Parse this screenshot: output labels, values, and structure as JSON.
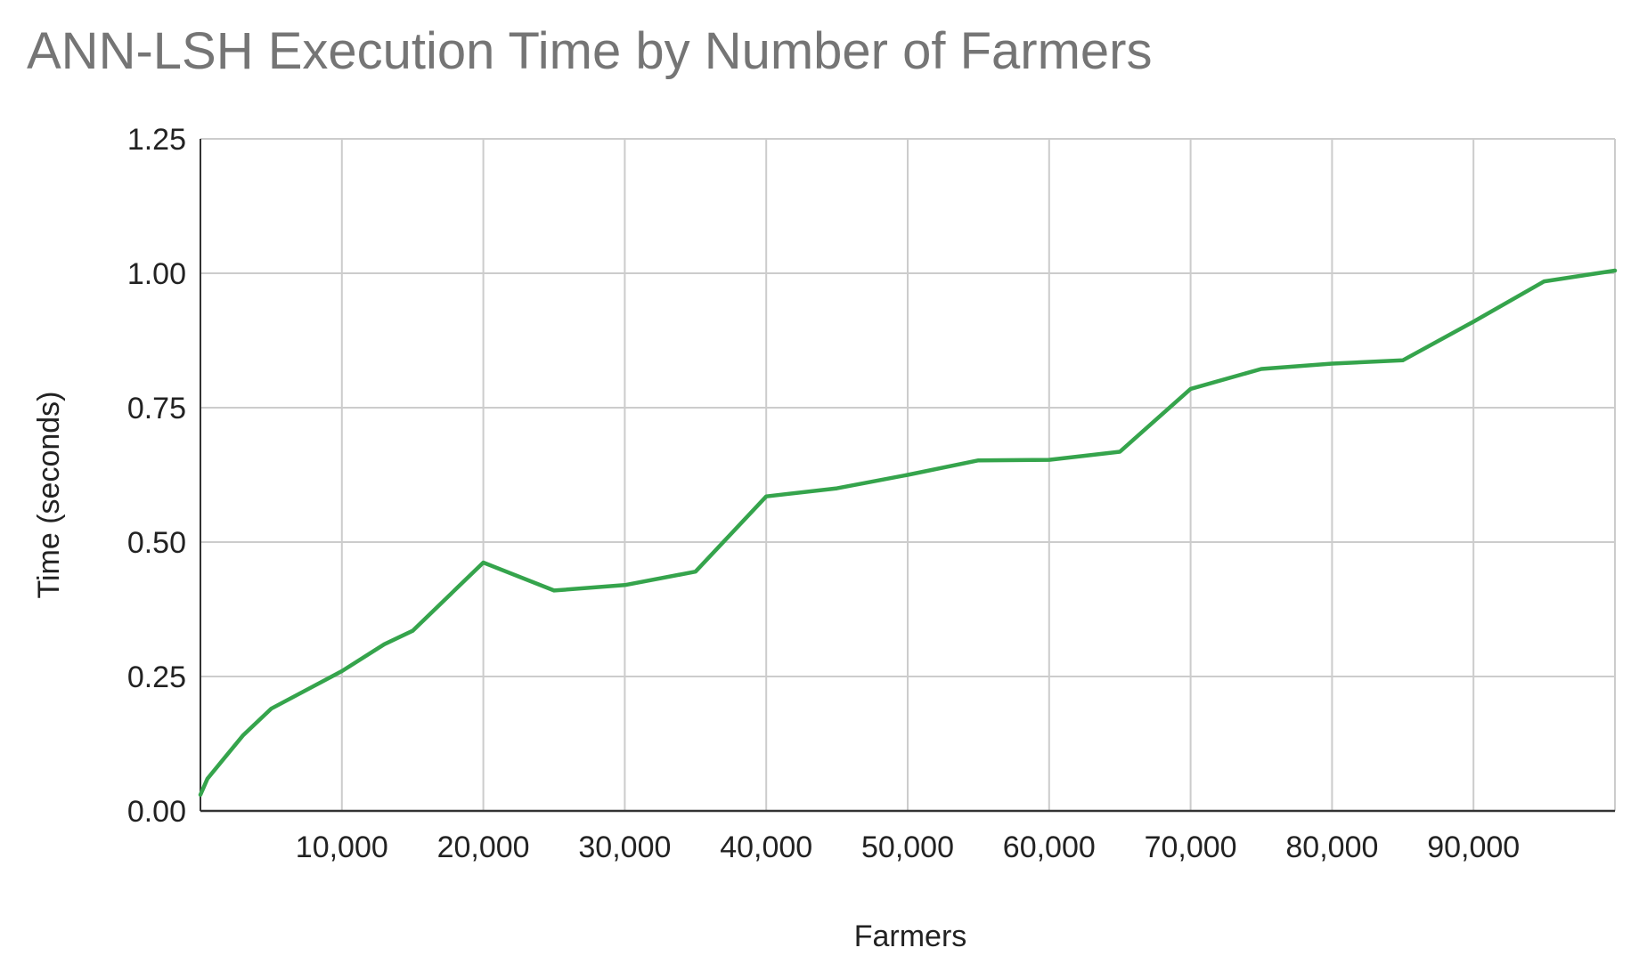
{
  "chart_data": {
    "type": "line",
    "title": "ANN-LSH Execution Time by Number of Farmers",
    "xlabel": "Farmers",
    "ylabel": "Time (seconds)",
    "xlim": [
      0,
      100000
    ],
    "ylim": [
      0,
      1.25
    ],
    "x_ticks": [
      10000,
      20000,
      30000,
      40000,
      50000,
      60000,
      70000,
      80000,
      90000
    ],
    "x_tick_labels": [
      "10,000",
      "20,000",
      "30,000",
      "40,000",
      "50,000",
      "60,000",
      "70,000",
      "80,000",
      "90,000"
    ],
    "y_ticks": [
      0,
      0.25,
      0.5,
      0.75,
      1.0,
      1.25
    ],
    "y_tick_labels": [
      "0.00",
      "0.25",
      "0.50",
      "0.75",
      "1.00",
      "1.25"
    ],
    "grid": true,
    "legend": "none",
    "series": [
      {
        "color": "#35a44c",
        "x": [
          0,
          500,
          3000,
          5000,
          10000,
          13000,
          15000,
          20000,
          25000,
          30000,
          35000,
          40000,
          45000,
          50000,
          55000,
          60000,
          65000,
          70000,
          75000,
          80000,
          85000,
          90000,
          95000,
          100000
        ],
        "y": [
          0.03,
          0.06,
          0.14,
          0.19,
          0.26,
          0.31,
          0.335,
          0.462,
          0.41,
          0.42,
          0.445,
          0.585,
          0.6,
          0.625,
          0.652,
          0.653,
          0.668,
          0.785,
          0.822,
          0.832,
          0.838,
          0.91,
          0.985,
          1.005
        ]
      }
    ]
  }
}
